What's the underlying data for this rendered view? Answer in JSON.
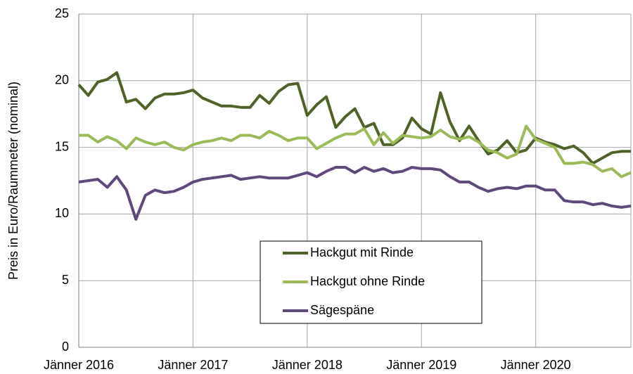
{
  "chart_data": {
    "type": "line",
    "y_label": "Preis in Euro/Raummeter (nominal)",
    "categories": [
      "Jänner 2016",
      null,
      null,
      null,
      null,
      null,
      null,
      null,
      null,
      null,
      null,
      null,
      "Jänner 2017",
      null,
      null,
      null,
      null,
      null,
      null,
      null,
      null,
      null,
      null,
      null,
      "Jänner 2018",
      null,
      null,
      null,
      null,
      null,
      null,
      null,
      null,
      null,
      null,
      null,
      "Jänner 2019",
      null,
      null,
      null,
      null,
      null,
      null,
      null,
      null,
      null,
      null,
      null,
      "Jänner 2020",
      null,
      null,
      null,
      null,
      null,
      null,
      null,
      null,
      null,
      null
    ],
    "series": [
      {
        "name": "Hackgut mit Rinde",
        "color": "#4f6228",
        "values": [
          19.7,
          18.9,
          19.9,
          20.1,
          20.6,
          18.4,
          18.6,
          17.9,
          18.7,
          19.0,
          19.0,
          19.1,
          19.3,
          18.7,
          18.4,
          18.1,
          18.1,
          18.0,
          18.0,
          18.9,
          18.3,
          19.2,
          19.7,
          19.8,
          17.4,
          18.2,
          18.8,
          16.5,
          17.3,
          17.9,
          16.5,
          16.8,
          15.2,
          15.2,
          15.7,
          17.2,
          16.4,
          16.0,
          19.1,
          16.9,
          15.5,
          16.6,
          15.5,
          14.5,
          14.8,
          15.5,
          14.6,
          14.8,
          15.7,
          15.4,
          15.2,
          14.9,
          15.1,
          14.6,
          13.8,
          14.2,
          14.6,
          14.7,
          14.7
        ]
      },
      {
        "name": "Hackgut ohne Rinde",
        "color": "#9bbb59",
        "values": [
          15.9,
          15.9,
          15.4,
          15.8,
          15.5,
          14.9,
          15.7,
          15.4,
          15.2,
          15.4,
          15.0,
          14.8,
          15.2,
          15.4,
          15.5,
          15.7,
          15.5,
          15.9,
          15.9,
          15.7,
          16.2,
          15.9,
          15.5,
          15.7,
          15.7,
          14.9,
          15.3,
          15.7,
          16.0,
          16.0,
          16.4,
          15.2,
          16.1,
          15.3,
          15.9,
          15.8,
          15.7,
          15.8,
          16.3,
          15.8,
          15.6,
          15.8,
          15.4,
          14.8,
          14.6,
          14.2,
          14.5,
          16.6,
          15.6,
          15.3,
          15.0,
          13.8,
          13.8,
          13.9,
          13.7,
          13.2,
          13.4,
          12.8,
          13.1
        ]
      },
      {
        "name": "Sägespäne",
        "color": "#5f497a",
        "values": [
          12.4,
          12.5,
          12.6,
          12.0,
          12.8,
          11.8,
          9.6,
          11.4,
          11.8,
          11.6,
          11.7,
          12.0,
          12.4,
          12.6,
          12.7,
          12.8,
          12.9,
          12.6,
          12.7,
          12.8,
          12.7,
          12.7,
          12.7,
          12.9,
          13.1,
          12.8,
          13.2,
          13.5,
          13.5,
          13.1,
          13.5,
          13.2,
          13.4,
          13.1,
          13.2,
          13.5,
          13.4,
          13.4,
          13.3,
          12.8,
          12.4,
          12.4,
          12.0,
          11.7,
          11.9,
          12.0,
          11.9,
          12.1,
          12.1,
          11.8,
          11.8,
          11.0,
          10.9,
          10.9,
          10.7,
          10.8,
          10.6,
          10.5,
          10.6
        ]
      }
    ],
    "ylim": [
      0,
      25
    ],
    "yticks": [
      0,
      5,
      10,
      15,
      20,
      25
    ],
    "grid": true,
    "legend": "lower-center"
  }
}
